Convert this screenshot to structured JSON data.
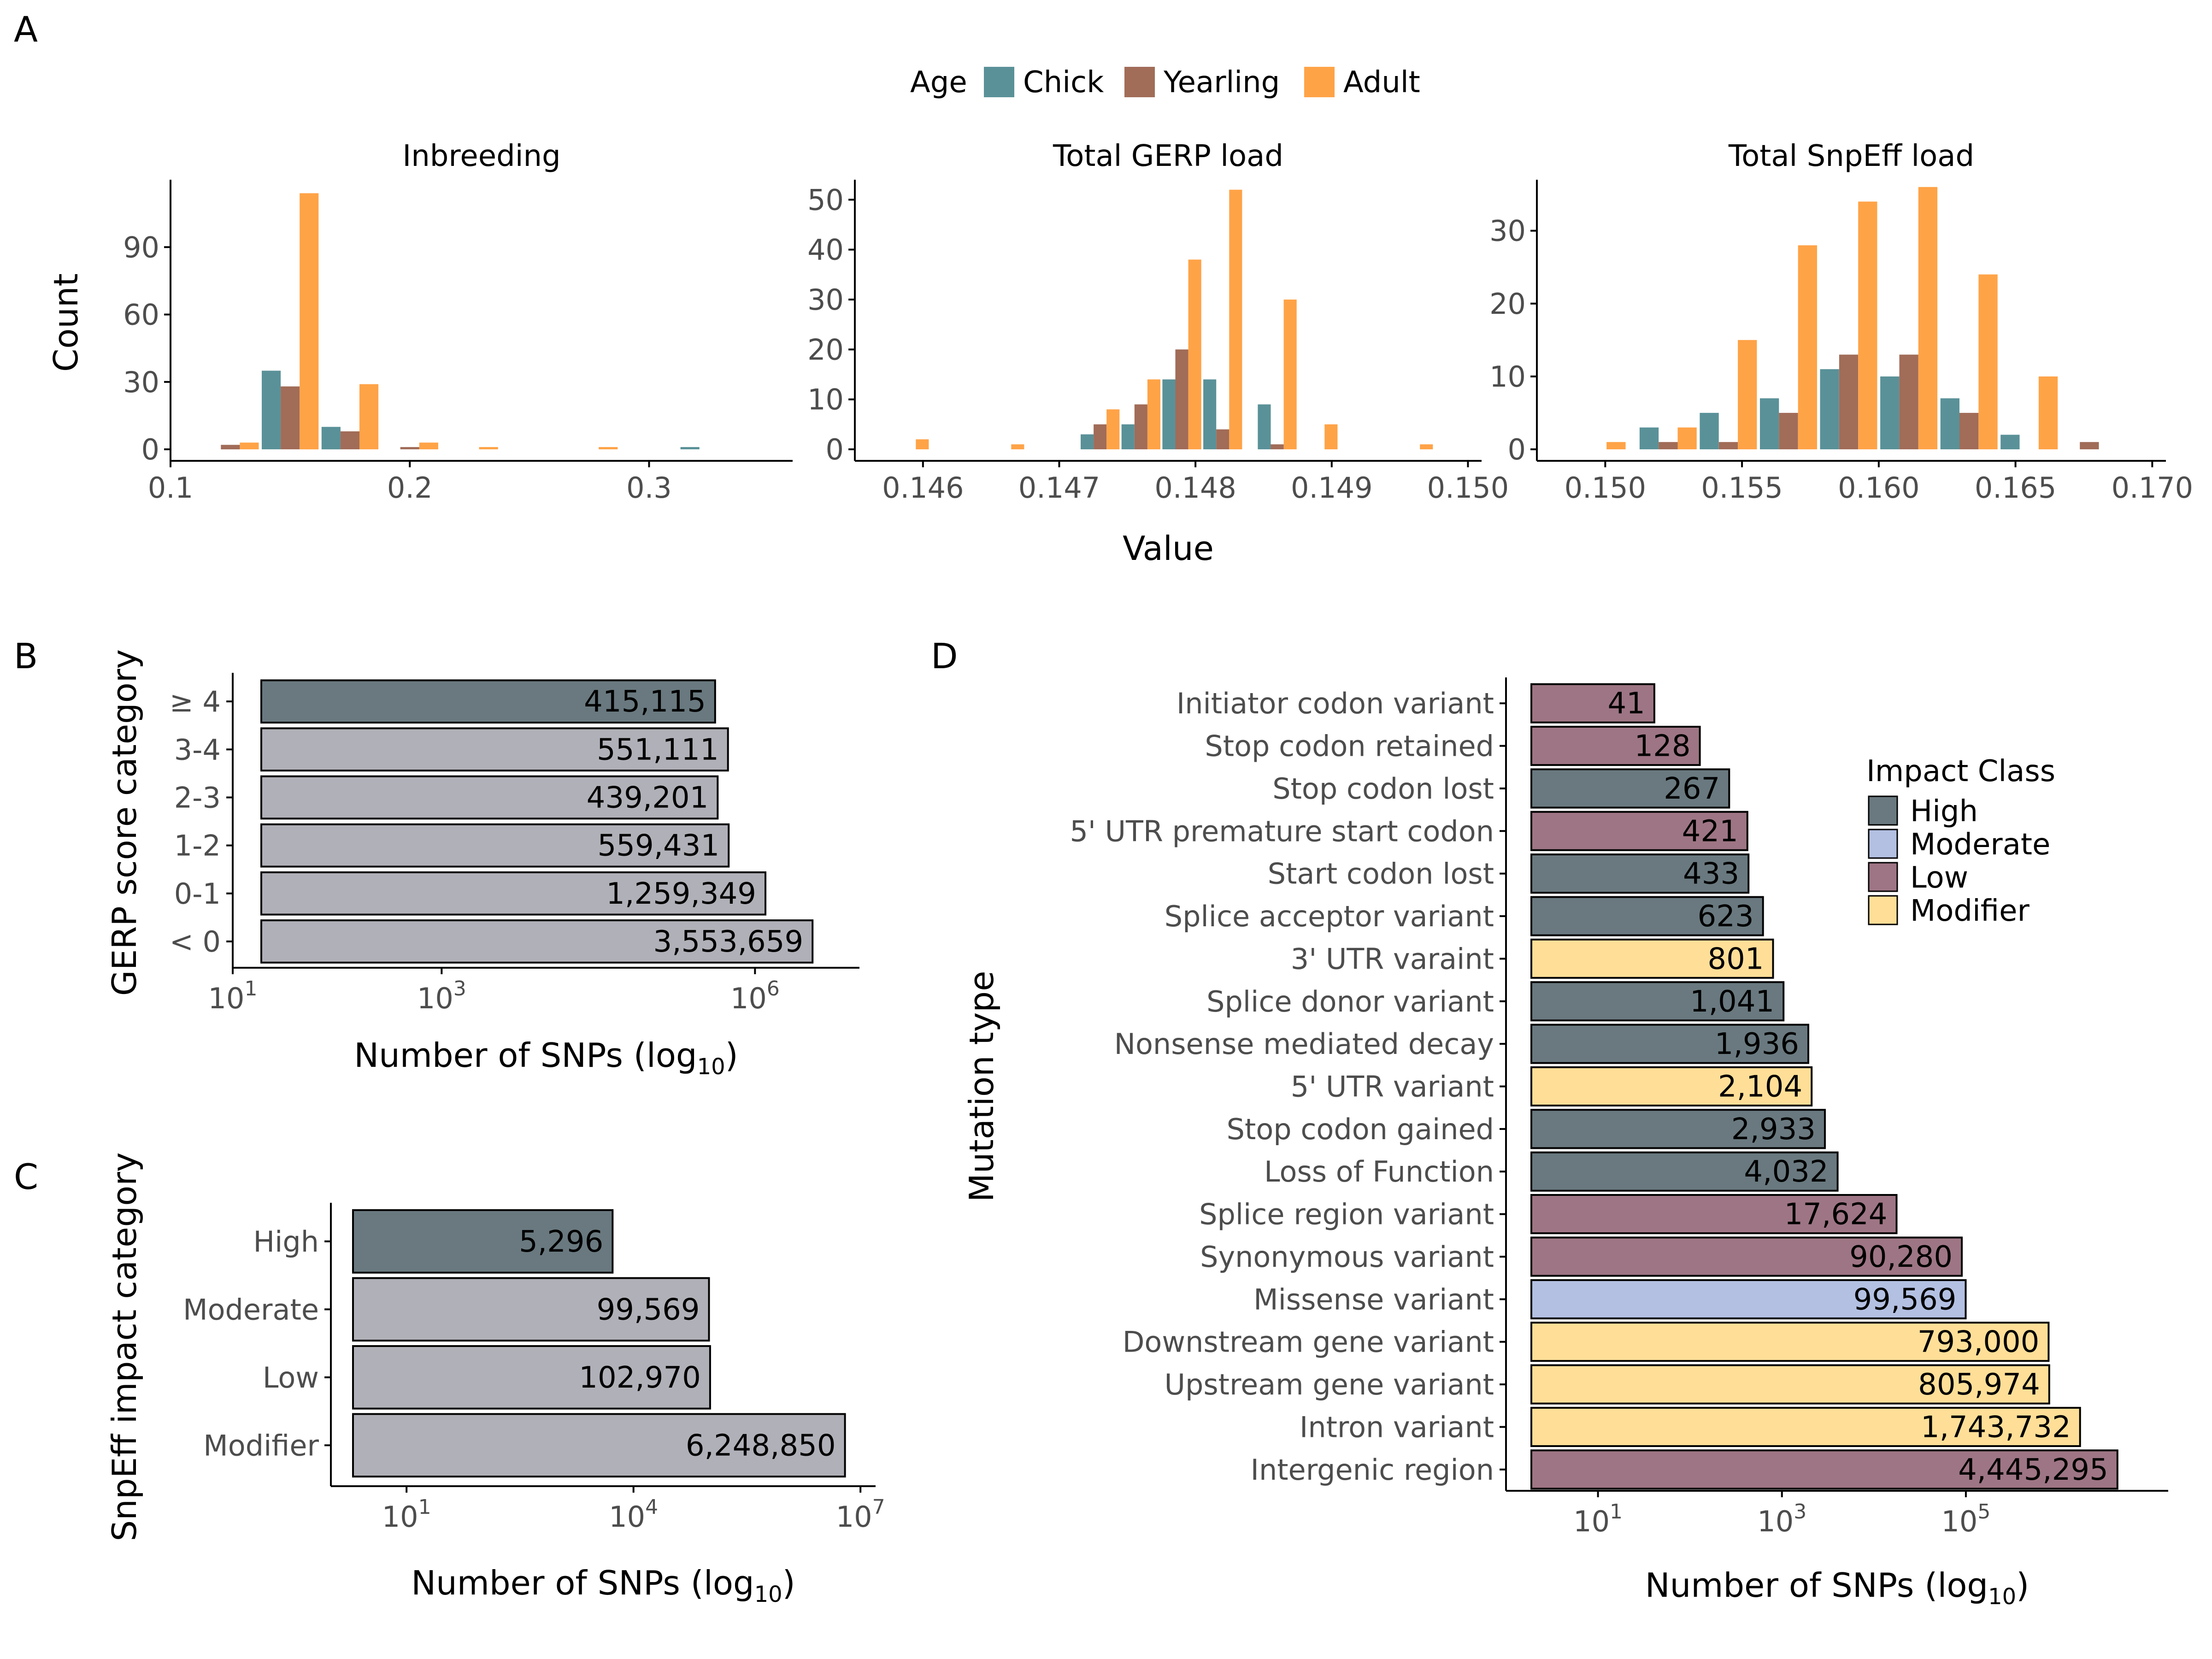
{
  "panels": {
    "a": "A",
    "b": "B",
    "c": "C",
    "d": "D"
  },
  "legend_age": {
    "title": "Age",
    "items": [
      {
        "label": "Chick",
        "color": "#5a9198"
      },
      {
        "label": "Yearling",
        "color": "#a16c58"
      },
      {
        "label": "Adult",
        "color": "#ffa347"
      }
    ]
  },
  "legend_impact": {
    "title": "Impact Class",
    "items": [
      {
        "label": "High",
        "color": "#69797f"
      },
      {
        "label": "Moderate",
        "color": "#b3c0e2"
      },
      {
        "label": "Low",
        "color": "#9e7584"
      },
      {
        "label": "Modifier",
        "color": "#ffdf97"
      }
    ]
  },
  "chart_data": [
    {
      "id": "A",
      "type": "bar",
      "subtype": "histogram",
      "ylabel": "Count",
      "xlabel": "Value",
      "series_names": [
        "Chick",
        "Yearling",
        "Adult"
      ],
      "facets": [
        {
          "title": "Inbreeding",
          "xlim": [
            0.1,
            0.36
          ],
          "ylim": [
            0,
            120
          ],
          "xticks": [
            "0.1",
            "0.2",
            "0.3"
          ],
          "xtick_values": [
            0.1,
            0.2,
            0.3
          ],
          "yticks": [
            "0",
            "30",
            "60",
            "90"
          ],
          "ytick_values": [
            0,
            30,
            60,
            90
          ],
          "bins": [
            {
              "x": 0.1,
              "values": [
                0,
                0,
                0
              ]
            },
            {
              "x": 0.125,
              "values": [
                0,
                2,
                3
              ]
            },
            {
              "x": 0.15,
              "values": [
                35,
                28,
                114
              ]
            },
            {
              "x": 0.175,
              "values": [
                10,
                8,
                29
              ]
            },
            {
              "x": 0.2,
              "values": [
                0,
                1,
                3
              ]
            },
            {
              "x": 0.225,
              "values": [
                0,
                0,
                1
              ]
            },
            {
              "x": 0.25,
              "values": [
                0,
                0,
                0
              ]
            },
            {
              "x": 0.275,
              "values": [
                0,
                0,
                1
              ]
            },
            {
              "x": 0.3,
              "values": [
                0,
                0,
                0
              ]
            },
            {
              "x": 0.325,
              "values": [
                1,
                0,
                0
              ]
            }
          ]
        },
        {
          "title": "Total GERP load",
          "xlim": [
            0.1455,
            0.1501
          ],
          "ylim": [
            0,
            54
          ],
          "xticks": [
            "0.146",
            "0.147",
            "0.148",
            "0.149",
            "0.150"
          ],
          "xtick_values": [
            0.146,
            0.147,
            0.148,
            0.149,
            0.15
          ],
          "yticks": [
            "0",
            "10",
            "20",
            "30",
            "40",
            "50"
          ],
          "ytick_values": [
            0,
            10,
            20,
            30,
            40,
            50
          ],
          "bins": [
            {
              "x": 0.1459,
              "values": [
                0,
                0,
                2
              ]
            },
            {
              "x": 0.1466,
              "values": [
                0,
                0,
                1
              ]
            },
            {
              "x": 0.1473,
              "values": [
                3,
                5,
                8
              ]
            },
            {
              "x": 0.1476,
              "values": [
                5,
                9,
                14
              ]
            },
            {
              "x": 0.1479,
              "values": [
                14,
                20,
                38
              ]
            },
            {
              "x": 0.1482,
              "values": [
                14,
                4,
                52
              ]
            },
            {
              "x": 0.1486,
              "values": [
                9,
                1,
                30
              ]
            },
            {
              "x": 0.1489,
              "values": [
                0,
                0,
                5
              ]
            },
            {
              "x": 0.1496,
              "values": [
                0,
                0,
                1
              ]
            }
          ]
        },
        {
          "title": "Total SnpEff load",
          "xlim": [
            0.1475,
            0.1705
          ],
          "ylim": [
            0,
            37
          ],
          "xticks": [
            "0.150",
            "0.155",
            "0.160",
            "0.165",
            "0.170"
          ],
          "xtick_values": [
            0.15,
            0.155,
            0.16,
            0.165,
            0.17
          ],
          "yticks": [
            "0",
            "10",
            "20",
            "30"
          ],
          "ytick_values": [
            0,
            10,
            20,
            30
          ],
          "bins": [
            {
              "x": 0.1497,
              "values": [
                0,
                0,
                1
              ]
            },
            {
              "x": 0.1523,
              "values": [
                3,
                1,
                3
              ]
            },
            {
              "x": 0.1545,
              "values": [
                5,
                1,
                15
              ]
            },
            {
              "x": 0.1567,
              "values": [
                7,
                5,
                28
              ]
            },
            {
              "x": 0.1589,
              "values": [
                11,
                13,
                34
              ]
            },
            {
              "x": 0.1611,
              "values": [
                10,
                13,
                36
              ]
            },
            {
              "x": 0.1633,
              "values": [
                7,
                5,
                24
              ]
            },
            {
              "x": 0.1655,
              "values": [
                2,
                0,
                10
              ]
            },
            {
              "x": 0.1677,
              "values": [
                0,
                1,
                0
              ]
            }
          ]
        }
      ]
    },
    {
      "id": "B",
      "type": "bar",
      "orientation": "horizontal",
      "scale": "log10",
      "xlim": [
        1,
        7
      ],
      "ylabel": "GERP score category",
      "xlabel": "Number of SNPs (log",
      "xlabel_sub": "10",
      "xlabel_end": ")",
      "xticks": [
        {
          "base": "10",
          "exp": "1",
          "value": 1
        },
        {
          "base": "10",
          "exp": "3",
          "value": 3
        },
        {
          "base": "10",
          "exp": "6",
          "value": 6
        }
      ],
      "categories": [
        "≥ 4",
        "3-4",
        "2-3",
        "1-2",
        "0-1",
        "< 0"
      ],
      "values": [
        415115,
        551111,
        439201,
        559431,
        1259349,
        3553659
      ],
      "labels": [
        "415,115",
        "551,111",
        "439,201",
        "559,431",
        "1,259,349",
        "3,553,659"
      ],
      "colors": [
        "#69797f",
        "#b0b0b8",
        "#b0b0b8",
        "#b0b0b8",
        "#b0b0b8",
        "#b0b0b8"
      ]
    },
    {
      "id": "C",
      "type": "bar",
      "orientation": "horizontal",
      "scale": "log10",
      "xlim": [
        0,
        7.2
      ],
      "ylabel": "SnpEff impact category",
      "xlabel": "Number of SNPs (log",
      "xlabel_sub": "10",
      "xlabel_end": ")",
      "xticks": [
        {
          "base": "10",
          "exp": "1",
          "value": 1
        },
        {
          "base": "10",
          "exp": "4",
          "value": 4
        },
        {
          "base": "10",
          "exp": "7",
          "value": 7
        }
      ],
      "categories": [
        "High",
        "Moderate",
        "Low",
        "Modifier"
      ],
      "values": [
        5296,
        99569,
        102970,
        6248850
      ],
      "labels": [
        "5,296",
        "99,569",
        "102,970",
        "6,248,850"
      ],
      "colors": [
        "#69797f",
        "#b0b0b8",
        "#b0b0b8",
        "#b0b0b8"
      ]
    },
    {
      "id": "D",
      "type": "bar",
      "orientation": "horizontal",
      "scale": "log10",
      "xlim": [
        0,
        7.2
      ],
      "ylabel": "Mutation type",
      "xlabel": "Number of SNPs (log",
      "xlabel_sub": "10",
      "xlabel_end": ")",
      "xticks": [
        {
          "base": "10",
          "exp": "1",
          "value": 1
        },
        {
          "base": "10",
          "exp": "3",
          "value": 3
        },
        {
          "base": "10",
          "exp": "5",
          "value": 5
        }
      ],
      "categories": [
        "Initiator codon variant",
        "Stop codon retained",
        "Stop codon lost",
        "5' UTR premature start codon",
        "Start codon lost",
        "Splice acceptor variant",
        "3' UTR varaint",
        "Splice donor variant",
        "Nonsense mediated decay",
        "5' UTR variant",
        "Stop codon gained",
        "Loss of Function",
        "Splice region variant",
        "Synonymous variant",
        "Missense variant",
        "Downstream gene variant",
        "Upstream gene variant",
        "Intron variant",
        "Intergenic region"
      ],
      "values": [
        41,
        128,
        267,
        421,
        433,
        623,
        801,
        1041,
        1936,
        2104,
        2933,
        4032,
        17624,
        90280,
        99569,
        793000,
        805974,
        1743732,
        4445295
      ],
      "labels": [
        "41",
        "128",
        "267",
        "421",
        "433",
        "623",
        "801",
        "1,041",
        "1,936",
        "2,104",
        "2,933",
        "4,032",
        "17,624",
        "90,280",
        "99,569",
        "793,000",
        "805,974",
        "1,743,732",
        "4,445,295"
      ],
      "impact": [
        "Low",
        "Low",
        "High",
        "Low",
        "High",
        "High",
        "Modifier",
        "High",
        "High",
        "Modifier",
        "High",
        "High",
        "Low",
        "Low",
        "Moderate",
        "Modifier",
        "Modifier",
        "Modifier",
        "Low"
      ]
    }
  ]
}
